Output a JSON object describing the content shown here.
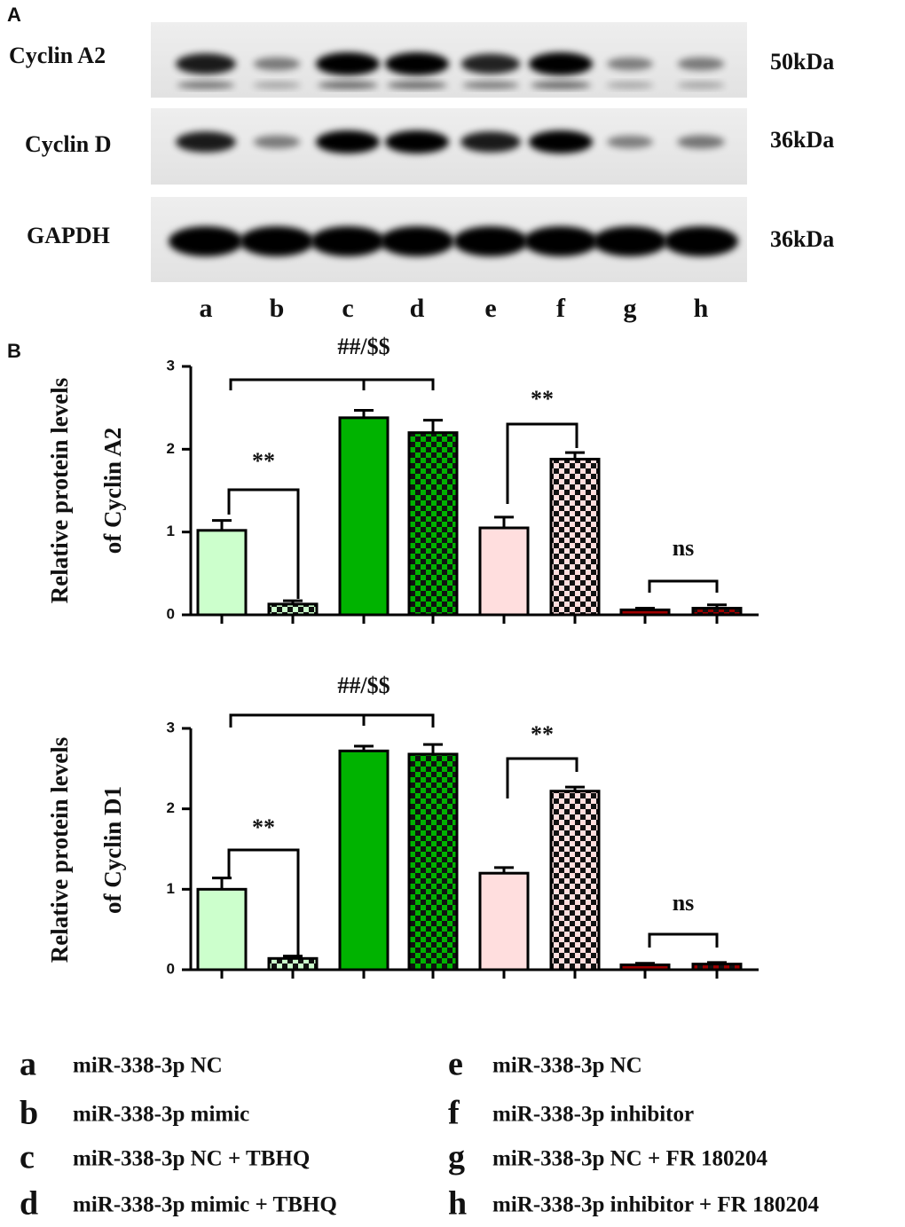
{
  "panel_a": {
    "label": "A",
    "rows": [
      {
        "name": "Cyclin A2",
        "size": "50kDa"
      },
      {
        "name": "Cyclin D",
        "size": "36kDa"
      },
      {
        "name": "GAPDH",
        "size": "36kDa"
      }
    ],
    "lanes": [
      "a",
      "b",
      "c",
      "d",
      "e",
      "f",
      "g",
      "h"
    ]
  },
  "panel_b": {
    "label": "B"
  },
  "chart_data": [
    {
      "type": "bar",
      "y_label": [
        "Relative protein levels",
        "of Cyclin A2"
      ],
      "categories": [
        null,
        null,
        null,
        null,
        null,
        null,
        null,
        null
      ],
      "values": [
        1.02,
        0.13,
        2.38,
        2.2,
        1.05,
        1.88,
        0.06,
        0.08
      ],
      "errors": [
        0.12,
        0.04,
        0.09,
        0.15,
        0.13,
        0.08,
        0.02,
        0.04
      ],
      "colors": [
        "#ccffcc",
        "#ccffcc",
        "#00b300",
        "#00b300",
        "#ffdede",
        "#ffdede",
        "#a00000",
        "#a00000"
      ],
      "checkered": [
        false,
        true,
        false,
        true,
        false,
        true,
        false,
        true
      ],
      "ylim": [
        0,
        3
      ],
      "yticks": [
        0,
        1,
        2,
        3
      ],
      "annotations": [
        "##/$$",
        "**",
        "**",
        "ns"
      ]
    },
    {
      "type": "bar",
      "y_label": [
        "Relative protein levels",
        "of Cyclin D1"
      ],
      "categories": [
        null,
        null,
        null,
        null,
        null,
        null,
        null,
        null
      ],
      "values": [
        1.0,
        0.14,
        2.72,
        2.68,
        1.2,
        2.22,
        0.06,
        0.07
      ],
      "errors": [
        0.14,
        0.03,
        0.06,
        0.12,
        0.07,
        0.05,
        0.02,
        0.02
      ],
      "colors": [
        "#ccffcc",
        "#ccffcc",
        "#00b300",
        "#00b300",
        "#ffdede",
        "#ffdede",
        "#a00000",
        "#a00000"
      ],
      "checkered": [
        false,
        true,
        false,
        true,
        false,
        true,
        false,
        true
      ],
      "ylim": [
        0,
        3
      ],
      "yticks": [
        0,
        1,
        2,
        3
      ],
      "annotations": [
        "##/$$",
        "**",
        "**",
        "ns"
      ]
    }
  ],
  "legend": [
    {
      "key": "a",
      "text": "miR-338-3p NC"
    },
    {
      "key": "b",
      "text": "miR-338-3p mimic"
    },
    {
      "key": "c",
      "text": "miR-338-3p NC + TBHQ"
    },
    {
      "key": "d",
      "text": "miR-338-3p mimic + TBHQ"
    },
    {
      "key": "e",
      "text": "miR-338-3p NC"
    },
    {
      "key": "f",
      "text": "miR-338-3p inhibitor"
    },
    {
      "key": "g",
      "text": "miR-338-3p NC + FR 180204"
    },
    {
      "key": "h",
      "text": "miR-338-3p inhibitor + FR 180204"
    }
  ]
}
